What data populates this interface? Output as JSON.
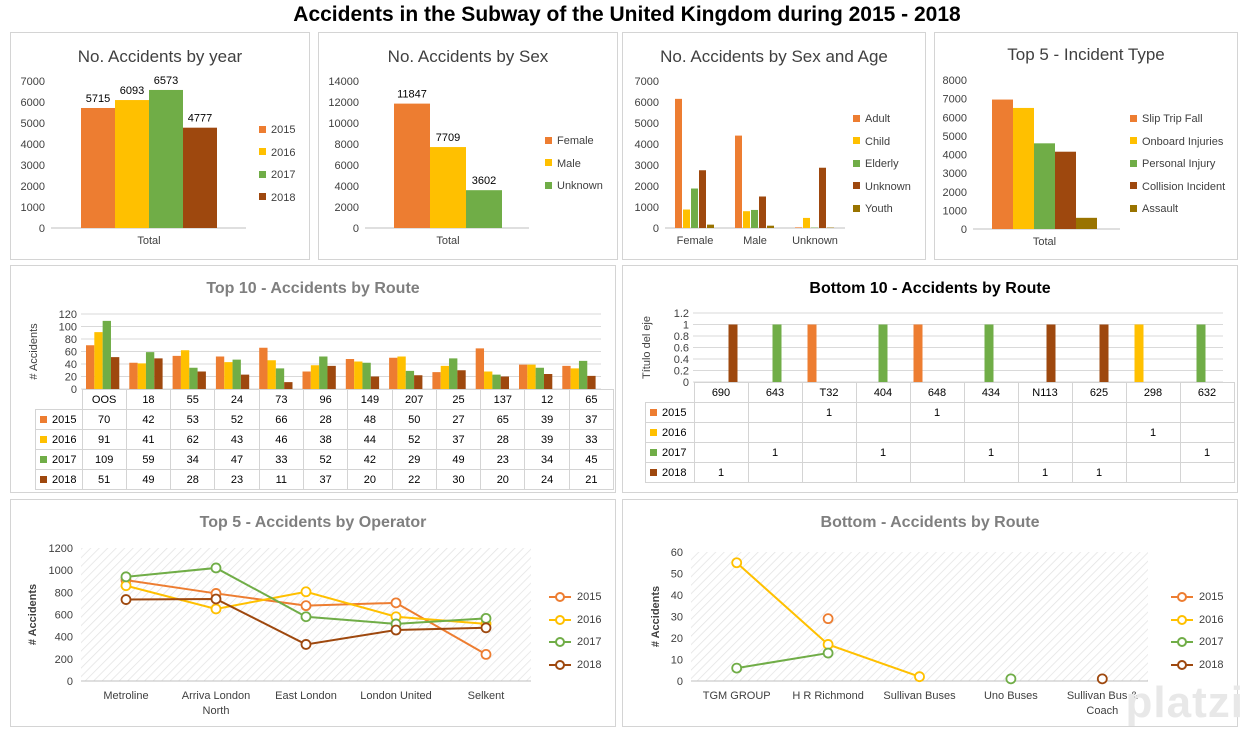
{
  "title": "Accidents in the Subway of the United Kingdom during 2015 - 2018",
  "colors": {
    "orange": "#ED7D31",
    "gold": "#FFC000",
    "green": "#70AD47",
    "brown": "#9E480E",
    "olive": "#997300",
    "grid": "#d9d9d9"
  },
  "watermark": "platzi",
  "chart_data": [
    {
      "id": "by_year",
      "type": "bar",
      "title": "No. Accidents by year",
      "categories": [
        "Total"
      ],
      "series": [
        {
          "name": "2015",
          "values": [
            5715
          ]
        },
        {
          "name": "2016",
          "values": [
            6093
          ]
        },
        {
          "name": "2017",
          "values": [
            6573
          ]
        },
        {
          "name": "2018",
          "values": [
            4777
          ]
        }
      ],
      "ylim": [
        0,
        7000
      ],
      "yticks": [
        "0",
        "1000",
        "2000",
        "3000",
        "4000",
        "5000",
        "6000",
        "7000"
      ],
      "data_labels": [
        "5715",
        "6093",
        "6573",
        "4777"
      ],
      "legend": "right"
    },
    {
      "id": "by_sex",
      "type": "bar",
      "title": "No. Accidents by Sex",
      "categories": [
        "Total"
      ],
      "series": [
        {
          "name": "Female",
          "values": [
            11847
          ]
        },
        {
          "name": "Male",
          "values": [
            7709
          ]
        },
        {
          "name": "Unknown",
          "values": [
            3602
          ]
        }
      ],
      "ylim": [
        0,
        14000
      ],
      "yticks": [
        "0",
        "2000",
        "4000",
        "6000",
        "8000",
        "10000",
        "12000",
        "14000"
      ],
      "data_labels": [
        "11847",
        "7709",
        "3602"
      ],
      "legend": "right"
    },
    {
      "id": "by_sex_age",
      "type": "bar",
      "title": "No. Accidents by Sex and  Age",
      "categories": [
        "Female",
        "Male",
        "Unknown"
      ],
      "series": [
        {
          "name": "Adult",
          "values": [
            6150,
            4400,
            30
          ]
        },
        {
          "name": "Child",
          "values": [
            880,
            800,
            480
          ]
        },
        {
          "name": "Elderly",
          "values": [
            1880,
            860,
            20
          ]
        },
        {
          "name": "Unknown",
          "values": [
            2750,
            1500,
            2870
          ]
        },
        {
          "name": "Youth",
          "values": [
            160,
            110,
            20
          ]
        }
      ],
      "ylim": [
        0,
        7000
      ],
      "yticks": [
        "0",
        "1000",
        "2000",
        "3000",
        "4000",
        "5000",
        "6000",
        "7000"
      ],
      "legend": "right"
    },
    {
      "id": "top5_incident",
      "type": "bar",
      "title": "Top 5 - Incident Type",
      "categories": [
        "Total"
      ],
      "series": [
        {
          "name": "Slip Trip Fall",
          "values": [
            6950
          ]
        },
        {
          "name": "Onboard Injuries",
          "values": [
            6500
          ]
        },
        {
          "name": "Personal Injury",
          "values": [
            4600
          ]
        },
        {
          "name": "Collision Incident",
          "values": [
            4150
          ]
        },
        {
          "name": "Assault",
          "values": [
            600
          ]
        }
      ],
      "ylim": [
        0,
        8000
      ],
      "yticks": [
        "0",
        "1000",
        "2000",
        "3000",
        "4000",
        "5000",
        "6000",
        "7000",
        "8000"
      ],
      "legend": "right"
    },
    {
      "id": "top10_route",
      "type": "bar",
      "title": "Top 10 - Accidents by Route",
      "ylabel": "# Accidents",
      "categories": [
        "OOS",
        "18",
        "55",
        "24",
        "73",
        "96",
        "149",
        "207",
        "25",
        "137",
        "12",
        "65"
      ],
      "series": [
        {
          "name": "2015",
          "values": [
            70,
            42,
            53,
            52,
            66,
            28,
            48,
            50,
            27,
            65,
            39,
            37
          ]
        },
        {
          "name": "2016",
          "values": [
            91,
            41,
            62,
            43,
            46,
            38,
            44,
            52,
            37,
            28,
            39,
            33
          ]
        },
        {
          "name": "2017",
          "values": [
            109,
            59,
            34,
            47,
            33,
            52,
            42,
            29,
            49,
            23,
            34,
            45
          ]
        },
        {
          "name": "2018",
          "values": [
            51,
            49,
            28,
            23,
            11,
            37,
            20,
            22,
            30,
            20,
            24,
            21
          ]
        }
      ],
      "ylim": [
        0,
        120
      ],
      "yticks": [
        "0",
        "20",
        "40",
        "60",
        "80",
        "100",
        "120"
      ],
      "legend": "data table"
    },
    {
      "id": "bottom10_route",
      "type": "bar",
      "title": "Bottom 10 - Accidents by Route",
      "ylabel": "Título del eje",
      "categories": [
        "690",
        "643",
        "T32",
        "404",
        "648",
        "434",
        "N113",
        "625",
        "298",
        "632"
      ],
      "series": [
        {
          "name": "2015",
          "values": [
            null,
            null,
            1,
            null,
            1,
            null,
            null,
            null,
            null,
            null
          ]
        },
        {
          "name": "2016",
          "values": [
            null,
            null,
            null,
            null,
            null,
            null,
            null,
            null,
            1,
            null
          ]
        },
        {
          "name": "2017",
          "values": [
            null,
            1,
            null,
            1,
            null,
            1,
            null,
            null,
            null,
            1
          ]
        },
        {
          "name": "2018",
          "values": [
            1,
            null,
            null,
            null,
            null,
            null,
            1,
            1,
            null,
            null
          ]
        }
      ],
      "ylim": [
        0,
        1.2
      ],
      "yticks": [
        "0",
        "0.2",
        "0.4",
        "0.6",
        "0.8",
        "1",
        "1.2"
      ],
      "legend": "data table"
    },
    {
      "id": "top5_operator",
      "type": "line",
      "title": "Top 5 - Accidents by Operator",
      "ylabel": "# Accidents",
      "categories": [
        "Metroline",
        "Arriva London North",
        "East London",
        "London United",
        "Selkent"
      ],
      "category_lines": [
        [
          "Metroline"
        ],
        [
          "Arriva London",
          "North"
        ],
        [
          "East London"
        ],
        [
          "London United"
        ],
        [
          "Selkent"
        ]
      ],
      "series": [
        {
          "name": "2015",
          "values": [
            910,
            790,
            680,
            705,
            240
          ]
        },
        {
          "name": "2016",
          "values": [
            860,
            650,
            805,
            580,
            515
          ]
        },
        {
          "name": "2017",
          "values": [
            940,
            1020,
            580,
            515,
            565
          ]
        },
        {
          "name": "2018",
          "values": [
            735,
            740,
            330,
            460,
            480
          ]
        }
      ],
      "ylim": [
        0,
        1200
      ],
      "yticks": [
        "0",
        "200",
        "400",
        "600",
        "800",
        "1000",
        "1200"
      ],
      "legend": "right"
    },
    {
      "id": "bottom_route",
      "type": "line",
      "title": "Bottom - Accidents by Route",
      "ylabel": "# Accidents",
      "categories": [
        "TGM GROUP",
        "H R Richmond",
        "Sullivan Buses",
        "Uno Buses",
        "Sullivan Bus & Coach"
      ],
      "category_lines": [
        [
          "TGM GROUP"
        ],
        [
          "H R Richmond"
        ],
        [
          "Sullivan Buses"
        ],
        [
          "Uno Buses"
        ],
        [
          "Sullivan Bus &",
          "Coach"
        ]
      ],
      "series": [
        {
          "name": "2015",
          "values": [
            null,
            29,
            null,
            null,
            null
          ]
        },
        {
          "name": "2016",
          "values": [
            55,
            17,
            2,
            null,
            null
          ]
        },
        {
          "name": "2017",
          "values": [
            6,
            13,
            null,
            1,
            null
          ]
        },
        {
          "name": "2018",
          "values": [
            null,
            null,
            null,
            null,
            1
          ]
        }
      ],
      "ylim": [
        0,
        60
      ],
      "yticks": [
        "0",
        "10",
        "20",
        "30",
        "40",
        "50",
        "60"
      ],
      "legend": "right"
    }
  ]
}
